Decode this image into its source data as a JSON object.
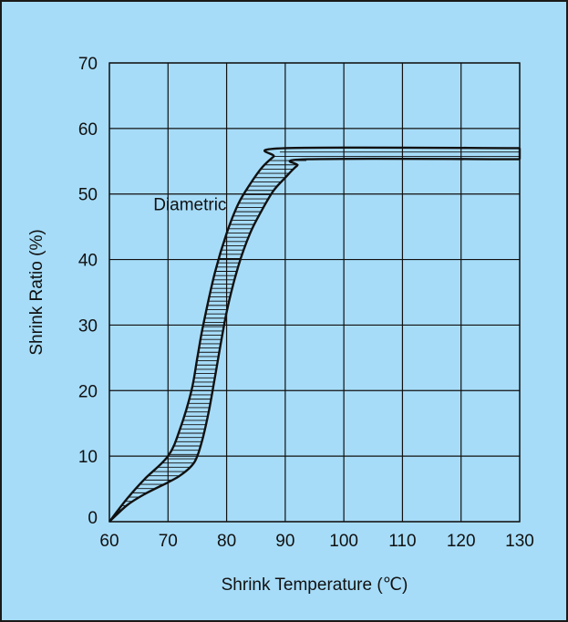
{
  "chart_data": {
    "type": "area",
    "title": "",
    "xlabel": "Shrink Temperature (℃)",
    "ylabel": "Shrink Ratio (%)",
    "xlim": [
      60,
      130
    ],
    "ylim": [
      0,
      70
    ],
    "xticks": [
      60,
      70,
      80,
      90,
      100,
      110,
      120,
      130
    ],
    "yticks": [
      0,
      10,
      20,
      30,
      40,
      50,
      60,
      70
    ],
    "grid": true,
    "fill_pattern": "horizontal-hatch",
    "series": [
      {
        "x": [
          60,
          63,
          66,
          70,
          72,
          74,
          75,
          76,
          78,
          80,
          82,
          84,
          86,
          88,
          90,
          130
        ],
        "y": [
          0,
          3.5,
          6.5,
          10,
          14,
          20,
          25,
          30,
          38,
          44,
          48.5,
          51.5,
          54,
          55.7,
          57,
          57
        ]
      },
      {
        "x": [
          60,
          63,
          66,
          70,
          72,
          74,
          75,
          76,
          77,
          78,
          80,
          82,
          84,
          86,
          88,
          90,
          92,
          94,
          130
        ],
        "y": [
          0,
          2.5,
          4.2,
          6,
          7,
          8.5,
          10,
          13,
          17,
          22,
          32,
          39,
          44,
          47.5,
          50.5,
          52.5,
          54.3,
          55.3,
          55.3
        ]
      }
    ],
    "annotations": [
      {
        "text": "Diametric",
        "x": 67.5,
        "y": 48.5
      }
    ]
  }
}
